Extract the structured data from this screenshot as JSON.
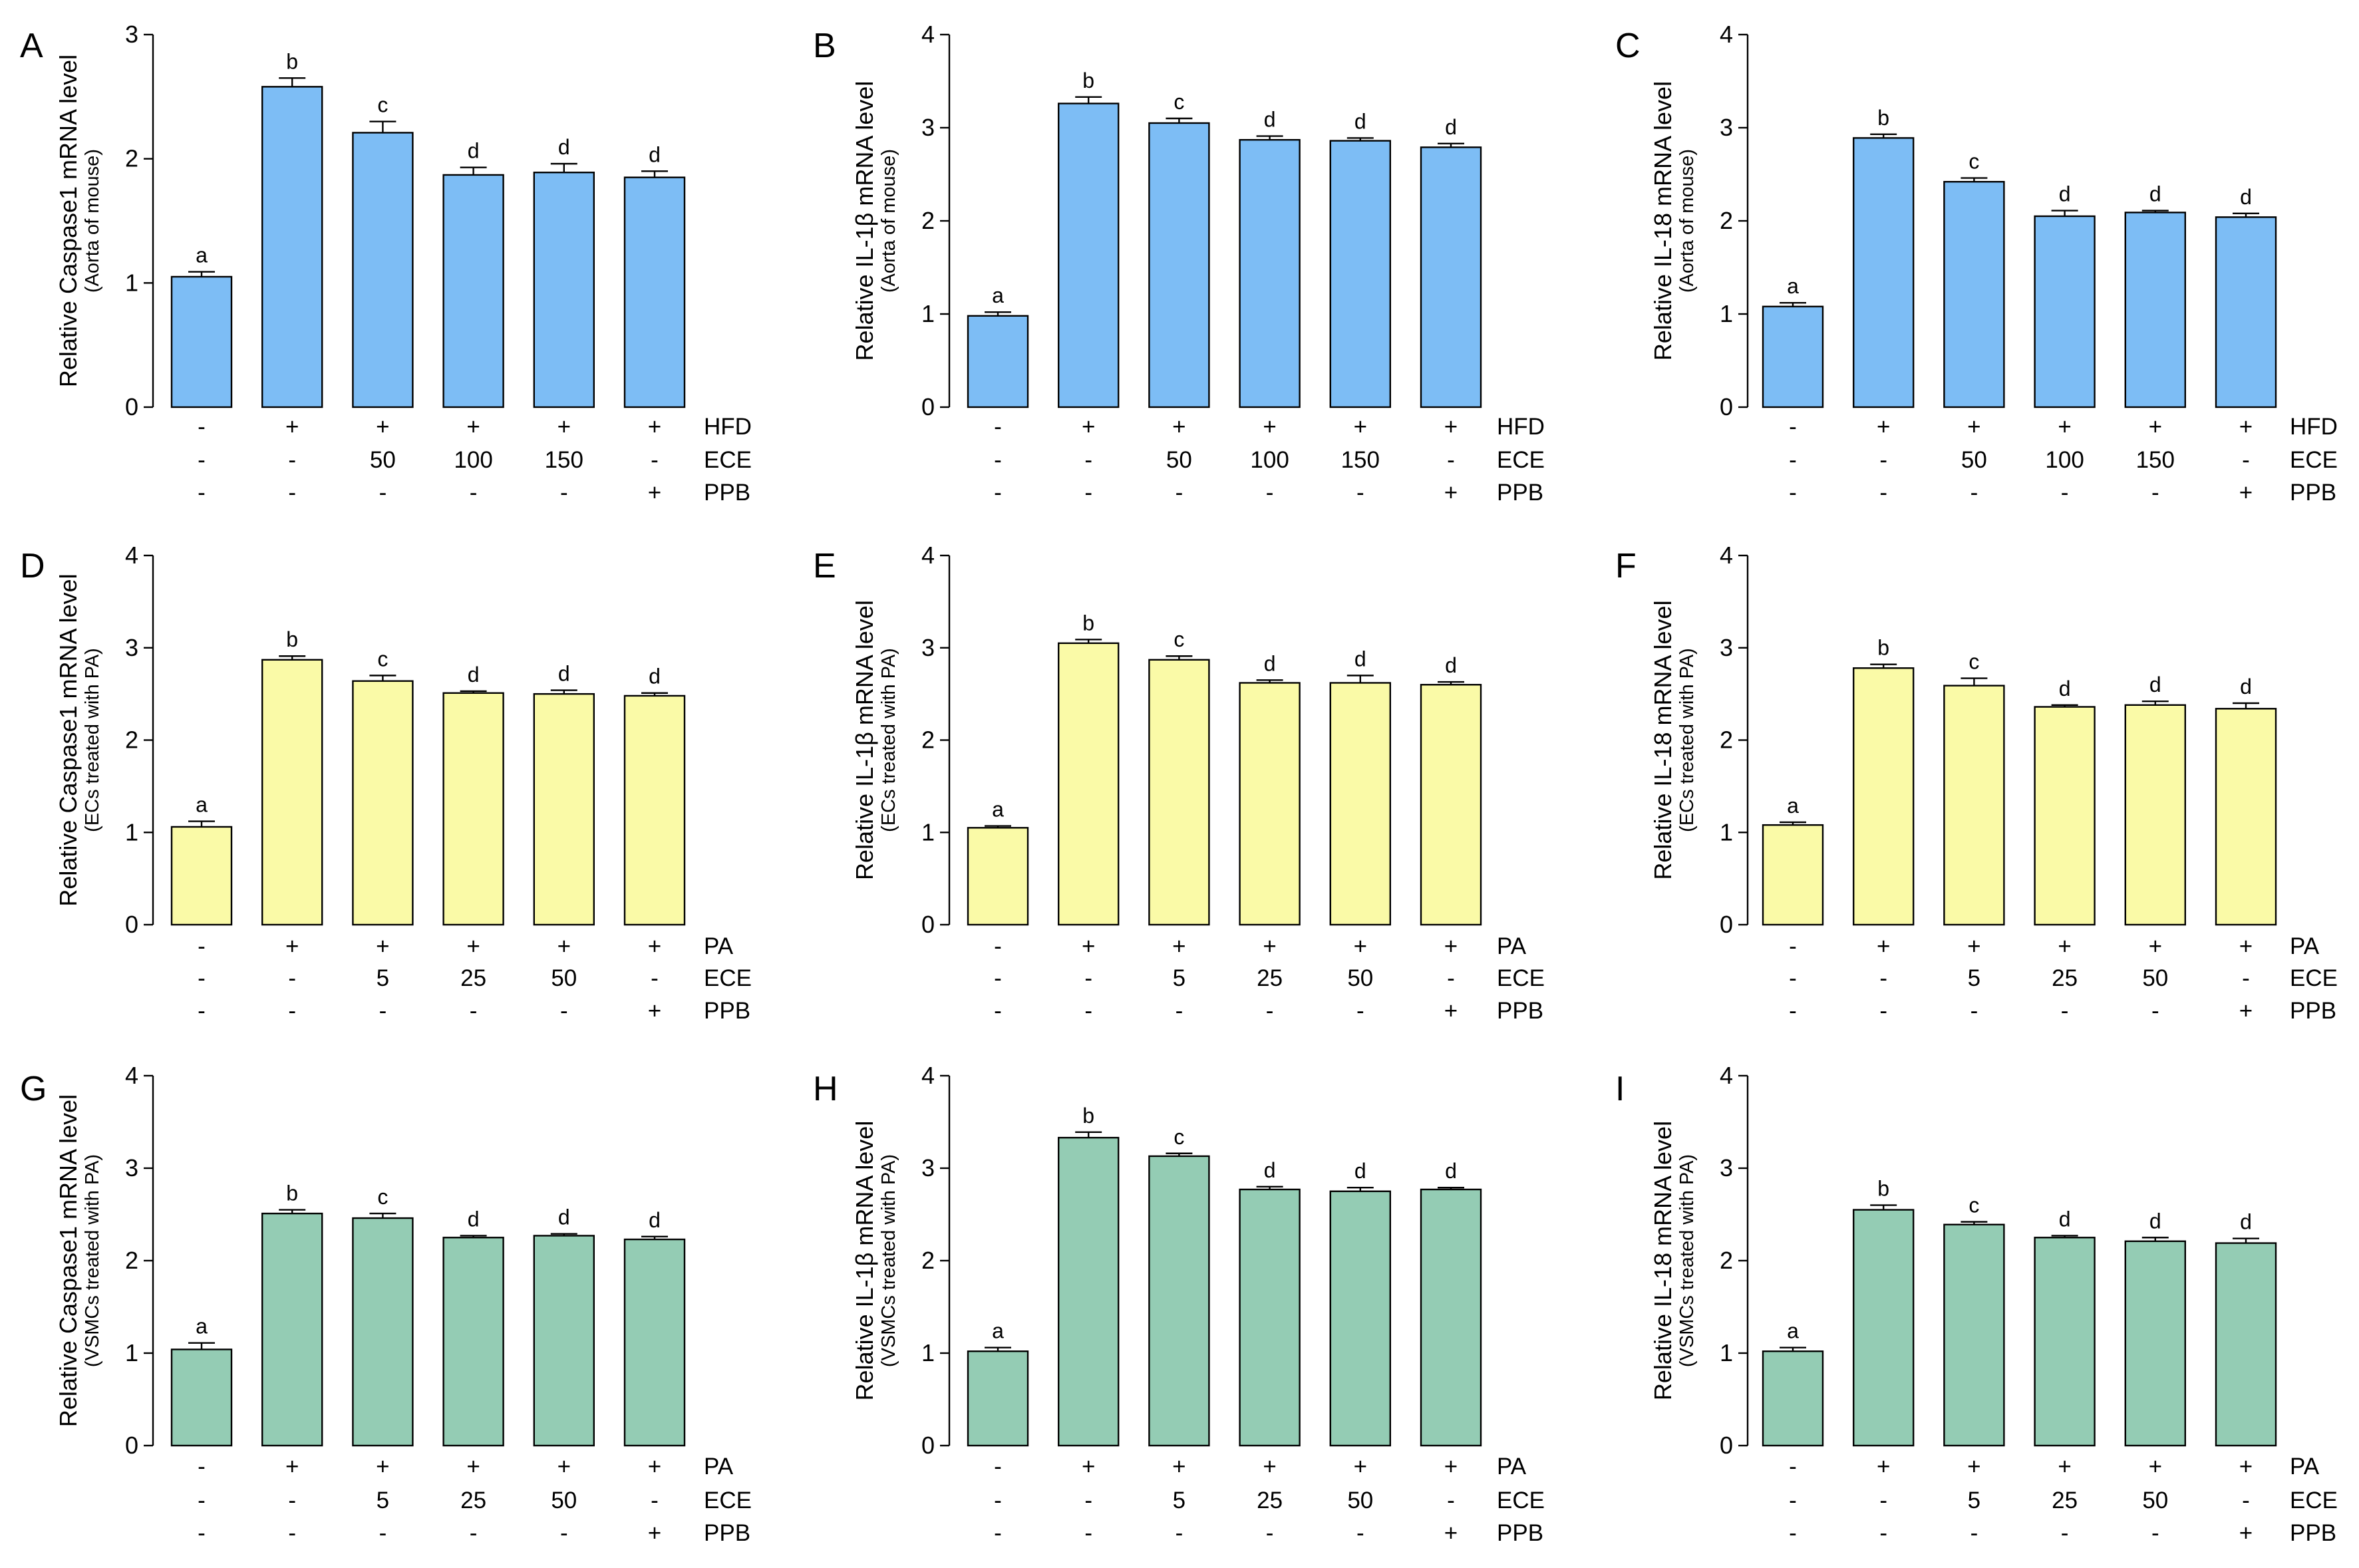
{
  "colors": {
    "blue": "#7dbdf5",
    "yellow": "#fafaa7",
    "green": "#94ccb4"
  },
  "chart_data": [
    {
      "type": "bar",
      "panel": "A",
      "color": "blue",
      "ylabel": "Relative Caspase1 mRNA level",
      "ysublabel": "(Aorta of mouse)",
      "ylim": [
        0,
        3
      ],
      "yticks": [
        0,
        1,
        2,
        3
      ],
      "values": [
        1.05,
        2.58,
        2.21,
        1.87,
        1.89,
        1.85
      ],
      "errors": [
        0.04,
        0.07,
        0.09,
        0.06,
        0.07,
        0.05
      ],
      "letters": [
        "a",
        "b",
        "c",
        "d",
        "d",
        "d"
      ],
      "treatments": [
        {
          "name": "HFD",
          "values": [
            "-",
            "+",
            "+",
            "+",
            "+",
            "+"
          ]
        },
        {
          "name": "ECE",
          "values": [
            "-",
            "-",
            "50",
            "100",
            "150",
            "-"
          ]
        },
        {
          "name": "PPB",
          "values": [
            "-",
            "-",
            "-",
            "-",
            "-",
            "+"
          ]
        }
      ]
    },
    {
      "type": "bar",
      "panel": "B",
      "color": "blue",
      "ylabel": "Relative IL-1β mRNA level",
      "ysublabel": "(Aorta of mouse)",
      "ylim": [
        0,
        4
      ],
      "yticks": [
        0,
        1,
        2,
        3,
        4
      ],
      "values": [
        0.98,
        3.26,
        3.05,
        2.87,
        2.86,
        2.79
      ],
      "errors": [
        0.04,
        0.07,
        0.05,
        0.04,
        0.03,
        0.04
      ],
      "letters": [
        "a",
        "b",
        "c",
        "d",
        "d",
        "d"
      ],
      "treatments": [
        {
          "name": "HFD",
          "values": [
            "-",
            "+",
            "+",
            "+",
            "+",
            "+"
          ]
        },
        {
          "name": "ECE",
          "values": [
            "-",
            "-",
            "50",
            "100",
            "150",
            "-"
          ]
        },
        {
          "name": "PPB",
          "values": [
            "-",
            "-",
            "-",
            "-",
            "-",
            "+"
          ]
        }
      ]
    },
    {
      "type": "bar",
      "panel": "C",
      "color": "blue",
      "ylabel": "Relative IL-18 mRNA level",
      "ysublabel": "(Aorta of mouse)",
      "ylim": [
        0,
        4
      ],
      "yticks": [
        0,
        1,
        2,
        3,
        4
      ],
      "values": [
        1.08,
        2.89,
        2.42,
        2.05,
        2.09,
        2.04
      ],
      "errors": [
        0.04,
        0.04,
        0.04,
        0.06,
        0.02,
        0.04
      ],
      "letters": [
        "a",
        "b",
        "c",
        "d",
        "d",
        "d"
      ],
      "treatments": [
        {
          "name": "HFD",
          "values": [
            "-",
            "+",
            "+",
            "+",
            "+",
            "+"
          ]
        },
        {
          "name": "ECE",
          "values": [
            "-",
            "-",
            "50",
            "100",
            "150",
            "-"
          ]
        },
        {
          "name": "PPB",
          "values": [
            "-",
            "-",
            "-",
            "-",
            "-",
            "+"
          ]
        }
      ]
    },
    {
      "type": "bar",
      "panel": "D",
      "color": "yellow",
      "ylabel": "Relative Caspase1 mRNA level",
      "ysublabel": "(ECs treated with PA)",
      "ylim": [
        0,
        4
      ],
      "yticks": [
        0,
        1,
        2,
        3,
        4
      ],
      "values": [
        1.06,
        2.87,
        2.64,
        2.51,
        2.5,
        2.48
      ],
      "errors": [
        0.06,
        0.04,
        0.06,
        0.02,
        0.04,
        0.03
      ],
      "letters": [
        "a",
        "b",
        "c",
        "d",
        "d",
        "d"
      ],
      "treatments": [
        {
          "name": "PA",
          "values": [
            "-",
            "+",
            "+",
            "+",
            "+",
            "+"
          ]
        },
        {
          "name": "ECE",
          "values": [
            "-",
            "-",
            "5",
            "25",
            "50",
            "-"
          ]
        },
        {
          "name": "PPB",
          "values": [
            "-",
            "-",
            "-",
            "-",
            "-",
            "+"
          ]
        }
      ]
    },
    {
      "type": "bar",
      "panel": "E",
      "color": "yellow",
      "ylabel": "Relative IL-1β mRNA level",
      "ysublabel": "(ECs treated with PA)",
      "ylim": [
        0,
        4
      ],
      "yticks": [
        0,
        1,
        2,
        3,
        4
      ],
      "values": [
        1.05,
        3.05,
        2.87,
        2.62,
        2.62,
        2.6
      ],
      "errors": [
        0.02,
        0.04,
        0.04,
        0.03,
        0.08,
        0.03
      ],
      "letters": [
        "a",
        "b",
        "c",
        "d",
        "d",
        "d"
      ],
      "treatments": [
        {
          "name": "PA",
          "values": [
            "-",
            "+",
            "+",
            "+",
            "+",
            "+"
          ]
        },
        {
          "name": "ECE",
          "values": [
            "-",
            "-",
            "5",
            "25",
            "50",
            "-"
          ]
        },
        {
          "name": "PPB",
          "values": [
            "-",
            "-",
            "-",
            "-",
            "-",
            "+"
          ]
        }
      ]
    },
    {
      "type": "bar",
      "panel": "F",
      "color": "yellow",
      "ylabel": "Relative IL-18 mRNA level",
      "ysublabel": "(ECs treated with PA)",
      "ylim": [
        0,
        4
      ],
      "yticks": [
        0,
        1,
        2,
        3,
        4
      ],
      "values": [
        1.08,
        2.78,
        2.59,
        2.36,
        2.38,
        2.34
      ],
      "errors": [
        0.03,
        0.04,
        0.08,
        0.02,
        0.04,
        0.06
      ],
      "letters": [
        "a",
        "b",
        "c",
        "d",
        "d",
        "d"
      ],
      "treatments": [
        {
          "name": "PA",
          "values": [
            "-",
            "+",
            "+",
            "+",
            "+",
            "+"
          ]
        },
        {
          "name": "ECE",
          "values": [
            "-",
            "-",
            "5",
            "25",
            "50",
            "-"
          ]
        },
        {
          "name": "PPB",
          "values": [
            "-",
            "-",
            "-",
            "-",
            "-",
            "+"
          ]
        }
      ]
    },
    {
      "type": "bar",
      "panel": "G",
      "color": "green",
      "ylabel": "Relative Caspase1 mRNA level",
      "ysublabel": "(VSMCs treated with PA)",
      "ylim": [
        0,
        4
      ],
      "yticks": [
        0,
        1,
        2,
        3,
        4
      ],
      "values": [
        1.04,
        2.51,
        2.46,
        2.25,
        2.27,
        2.23
      ],
      "errors": [
        0.07,
        0.04,
        0.05,
        0.02,
        0.02,
        0.03
      ],
      "letters": [
        "a",
        "b",
        "c",
        "d",
        "d",
        "d"
      ],
      "treatments": [
        {
          "name": "PA",
          "values": [
            "-",
            "+",
            "+",
            "+",
            "+",
            "+"
          ]
        },
        {
          "name": "ECE",
          "values": [
            "-",
            "-",
            "5",
            "25",
            "50",
            "-"
          ]
        },
        {
          "name": "PPB",
          "values": [
            "-",
            "-",
            "-",
            "-",
            "-",
            "+"
          ]
        }
      ]
    },
    {
      "type": "bar",
      "panel": "H",
      "color": "green",
      "ylabel": "Relative IL-1β mRNA level",
      "ysublabel": "(VSMCs treated with PA)",
      "ylim": [
        0,
        4
      ],
      "yticks": [
        0,
        1,
        2,
        3,
        4
      ],
      "values": [
        1.02,
        3.33,
        3.13,
        2.77,
        2.75,
        2.77
      ],
      "errors": [
        0.04,
        0.06,
        0.03,
        0.03,
        0.04,
        0.02
      ],
      "letters": [
        "a",
        "b",
        "c",
        "d",
        "d",
        "d"
      ],
      "treatments": [
        {
          "name": "PA",
          "values": [
            "-",
            "+",
            "+",
            "+",
            "+",
            "+"
          ]
        },
        {
          "name": "ECE",
          "values": [
            "-",
            "-",
            "5",
            "25",
            "50",
            "-"
          ]
        },
        {
          "name": "PPB",
          "values": [
            "-",
            "-",
            "-",
            "-",
            "-",
            "+"
          ]
        }
      ]
    },
    {
      "type": "bar",
      "panel": "I",
      "color": "green",
      "ylabel": "Relative IL-18 mRNA level",
      "ysublabel": "(VSMCs treated with PA)",
      "ylim": [
        0,
        4
      ],
      "yticks": [
        0,
        1,
        2,
        3,
        4
      ],
      "values": [
        1.02,
        2.55,
        2.39,
        2.25,
        2.21,
        2.19
      ],
      "errors": [
        0.04,
        0.05,
        0.03,
        0.02,
        0.04,
        0.05
      ],
      "letters": [
        "a",
        "b",
        "c",
        "d",
        "d",
        "d"
      ],
      "treatments": [
        {
          "name": "PA",
          "values": [
            "-",
            "+",
            "+",
            "+",
            "+",
            "+"
          ]
        },
        {
          "name": "ECE",
          "values": [
            "-",
            "-",
            "5",
            "25",
            "50",
            "-"
          ]
        },
        {
          "name": "PPB",
          "values": [
            "-",
            "-",
            "-",
            "-",
            "-",
            "+"
          ]
        }
      ]
    }
  ]
}
